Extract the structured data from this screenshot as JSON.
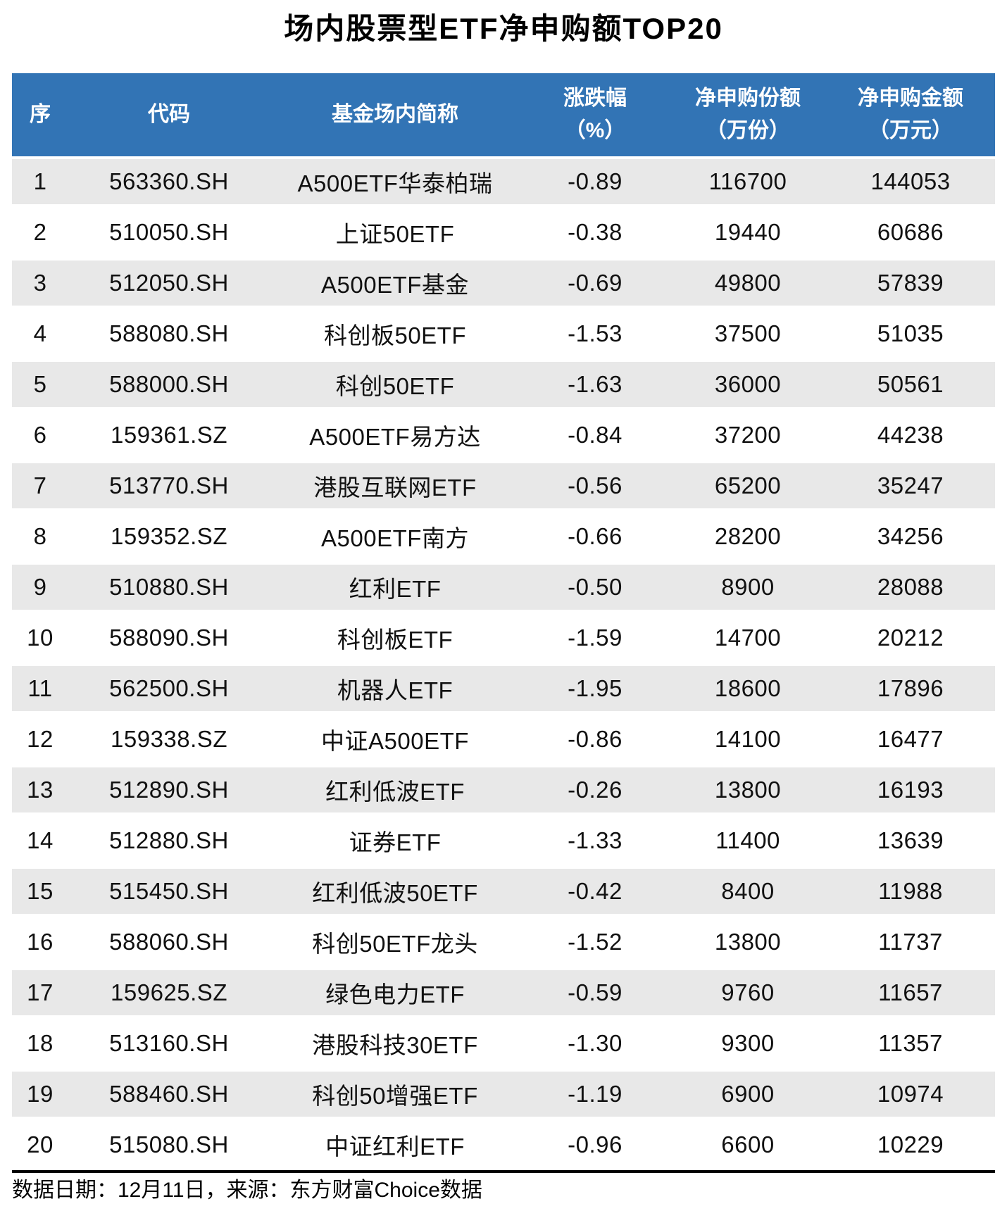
{
  "chart_data": {
    "type": "table",
    "title": "场内股票型ETF净申购额TOP20",
    "columns": [
      "序",
      "代码",
      "基金场内简称",
      "涨跌幅（%）",
      "净申购份额（万份）",
      "净申购金额（万元）"
    ],
    "rows": [
      [
        "1",
        "563360.SH",
        "A500ETF华泰柏瑞",
        "-0.89",
        "116700",
        "144053"
      ],
      [
        "2",
        "510050.SH",
        "上证50ETF",
        "-0.38",
        "19440",
        "60686"
      ],
      [
        "3",
        "512050.SH",
        "A500ETF基金",
        "-0.69",
        "49800",
        "57839"
      ],
      [
        "4",
        "588080.SH",
        "科创板50ETF",
        "-1.53",
        "37500",
        "51035"
      ],
      [
        "5",
        "588000.SH",
        "科创50ETF",
        "-1.63",
        "36000",
        "50561"
      ],
      [
        "6",
        "159361.SZ",
        "A500ETF易方达",
        "-0.84",
        "37200",
        "44238"
      ],
      [
        "7",
        "513770.SH",
        "港股互联网ETF",
        "-0.56",
        "65200",
        "35247"
      ],
      [
        "8",
        "159352.SZ",
        "A500ETF南方",
        "-0.66",
        "28200",
        "34256"
      ],
      [
        "9",
        "510880.SH",
        "红利ETF",
        "-0.50",
        "8900",
        "28088"
      ],
      [
        "10",
        "588090.SH",
        "科创板ETF",
        "-1.59",
        "14700",
        "20212"
      ],
      [
        "11",
        "562500.SH",
        "机器人ETF",
        "-1.95",
        "18600",
        "17896"
      ],
      [
        "12",
        "159338.SZ",
        "中证A500ETF",
        "-0.86",
        "14100",
        "16477"
      ],
      [
        "13",
        "512890.SH",
        "红利低波ETF",
        "-0.26",
        "13800",
        "16193"
      ],
      [
        "14",
        "512880.SH",
        "证券ETF",
        "-1.33",
        "11400",
        "13639"
      ],
      [
        "15",
        "515450.SH",
        "红利低波50ETF",
        "-0.42",
        "8400",
        "11988"
      ],
      [
        "16",
        "588060.SH",
        "科创50ETF龙头",
        "-1.52",
        "13800",
        "11737"
      ],
      [
        "17",
        "159625.SZ",
        "绿色电力ETF",
        "-0.59",
        "9760",
        "11657"
      ],
      [
        "18",
        "513160.SH",
        "港股科技30ETF",
        "-1.30",
        "9300",
        "11357"
      ],
      [
        "19",
        "588460.SH",
        "科创50增强ETF",
        "-1.19",
        "6900",
        "10974"
      ],
      [
        "20",
        "515080.SH",
        "中证红利ETF",
        "-0.96",
        "6600",
        "10229"
      ]
    ],
    "footnote": "数据日期：12月11日，来源：东方财富Choice数据",
    "layout": "header row blue, zebra rows, black rule above footnote"
  },
  "header": {
    "cells": [
      {
        "line1": "序",
        "line2": ""
      },
      {
        "line1": "代码",
        "line2": ""
      },
      {
        "line1": "基金场内简称",
        "line2": ""
      },
      {
        "line1": "涨跌幅",
        "line2": "（%）"
      },
      {
        "line1": "净申购份额",
        "line2": "（万份）"
      },
      {
        "line1": "净申购金额",
        "line2": "（万元）"
      }
    ]
  },
  "colors": {
    "header_bg": "#3274B5",
    "row_alt_bg": "#E8E8E8",
    "rule": "#000000",
    "text": "#111111"
  }
}
